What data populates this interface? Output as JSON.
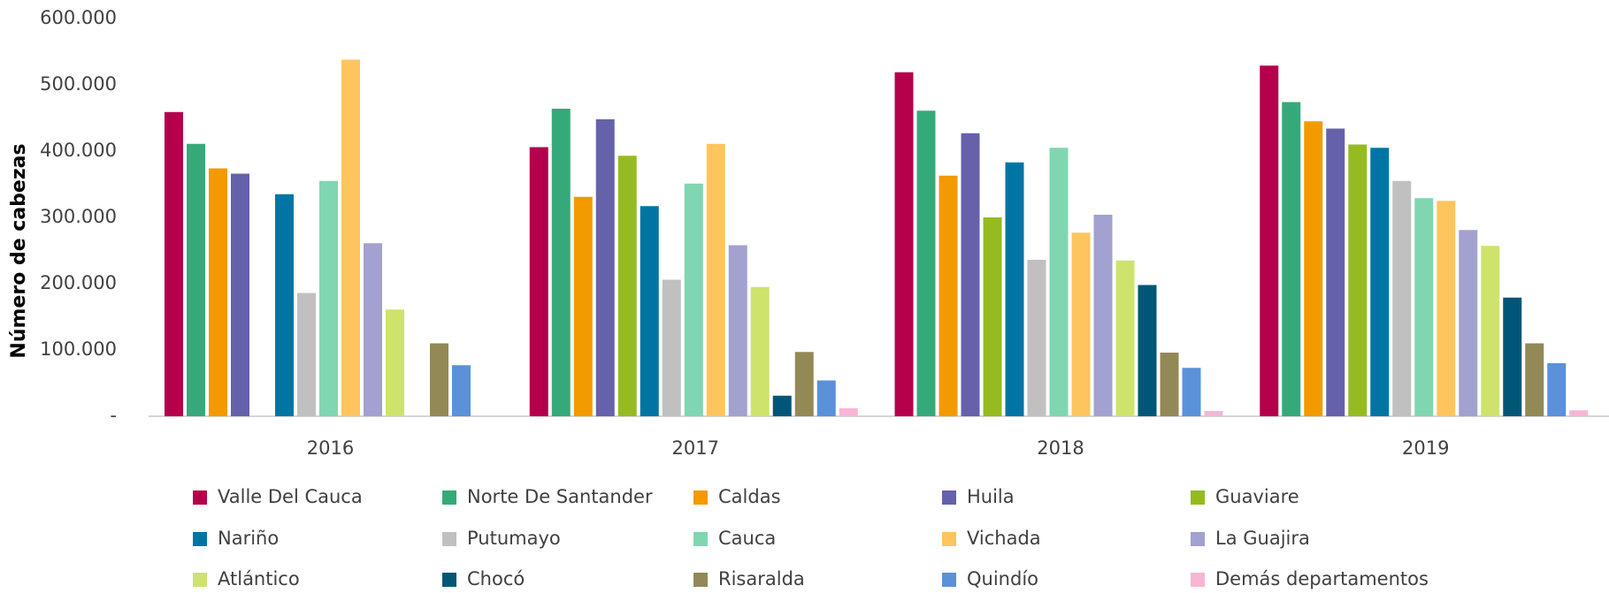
{
  "chart_data": {
    "type": "bar",
    "y_label": "Número de cabezas",
    "categories": [
      "2016",
      "2017",
      "2018",
      "2019"
    ],
    "ylim": [
      0,
      600000
    ],
    "yticks": [
      {
        "value": 0,
        "label": "-"
      },
      {
        "value": 100000,
        "label": "100.000"
      },
      {
        "value": 200000,
        "label": "200.000"
      },
      {
        "value": 300000,
        "label": "300.000"
      },
      {
        "value": 400000,
        "label": "400.000"
      },
      {
        "value": 500000,
        "label": "500.000"
      },
      {
        "value": 600000,
        "label": "600.000"
      }
    ],
    "grid": false,
    "series": [
      {
        "name": "Valle Del Cauca",
        "color": "#b5004b",
        "values": [
          459000,
          406000,
          519000,
          529000
        ]
      },
      {
        "name": "Norte De Santander",
        "color": "#36a97a",
        "values": [
          411000,
          464000,
          461000,
          474000
        ]
      },
      {
        "name": "Caldas",
        "color": "#f29a00",
        "values": [
          374000,
          331000,
          363000,
          445000
        ]
      },
      {
        "name": "Huila",
        "color": "#6561ab",
        "values": [
          366000,
          448000,
          427000,
          434000
        ]
      },
      {
        "name": "Guaviare",
        "color": "#95bb20",
        "values": [
          null,
          393000,
          300000,
          410000
        ]
      },
      {
        "name": "Nariño",
        "color": "#0075a4",
        "values": [
          335000,
          317000,
          383000,
          405000
        ]
      },
      {
        "name": "Putumayo",
        "color": "#c0c0c0",
        "values": [
          186000,
          206000,
          236000,
          355000
        ]
      },
      {
        "name": "Cauca",
        "color": "#7fd6b0",
        "values": [
          355000,
          351000,
          405000,
          329000
        ]
      },
      {
        "name": "Vichada",
        "color": "#fec55e",
        "values": [
          538000,
          411000,
          277000,
          325000
        ]
      },
      {
        "name": "La Guajira",
        "color": "#a2a1cf",
        "values": [
          261000,
          258000,
          304000,
          281000
        ]
      },
      {
        "name": "Atlántico",
        "color": "#cde36c",
        "values": [
          161000,
          195000,
          235000,
          257000
        ]
      },
      {
        "name": "Chocó",
        "color": "#005677",
        "values": [
          null,
          31000,
          198000,
          179000
        ]
      },
      {
        "name": "Risaralda",
        "color": "#938956",
        "values": [
          110000,
          97000,
          96000,
          110000
        ]
      },
      {
        "name": "Quindío",
        "color": "#5a91d9",
        "values": [
          77000,
          54000,
          73000,
          80000
        ]
      },
      {
        "name": "Demás departamentos",
        "color": "#f8b5d5",
        "values": [
          null,
          12000,
          8000,
          9000
        ]
      }
    ]
  }
}
